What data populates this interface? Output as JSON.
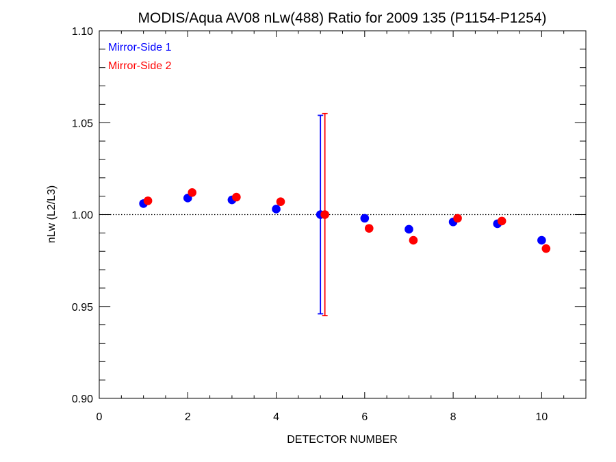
{
  "chart_data": {
    "type": "scatter",
    "title": "MODIS/Aqua AV08 nLw(488) Ratio for 2009 135 (P1154-P1254)",
    "xlabel": "DETECTOR NUMBER",
    "ylabel": "nLw (L2/L3)",
    "xlim": [
      0,
      11
    ],
    "ylim": [
      0.9,
      1.1
    ],
    "x_ticks": [
      0,
      2,
      4,
      6,
      8,
      10
    ],
    "x_tick_labels": [
      "0",
      "2",
      "4",
      "6",
      "8",
      "10"
    ],
    "y_ticks": [
      0.9,
      0.95,
      1.0,
      1.05,
      1.1
    ],
    "y_tick_labels": [
      "0.90",
      "0.95",
      "1.00",
      "1.05",
      "1.10"
    ],
    "reference_line": 1.0,
    "legend_position": "top-left",
    "series": [
      {
        "name": "Mirror-Side 1",
        "color": "#0000ff",
        "x": [
          1,
          2,
          3,
          4,
          5,
          6,
          7,
          8,
          9,
          10
        ],
        "y": [
          1.006,
          1.009,
          1.008,
          1.003,
          1.0,
          0.998,
          0.992,
          0.996,
          0.995,
          0.986
        ],
        "error_bar": {
          "x": 5,
          "low": 0.946,
          "high": 1.054
        }
      },
      {
        "name": "Mirror-Side 2",
        "color": "#ff0000",
        "x": [
          1.1,
          2.1,
          3.1,
          4.1,
          5.1,
          6.1,
          7.1,
          8.1,
          9.1,
          10.1
        ],
        "y": [
          1.0075,
          1.012,
          1.0095,
          1.007,
          1.0,
          0.9925,
          0.986,
          0.998,
          0.9965,
          0.9815
        ],
        "error_bar": {
          "x": 5.1,
          "low": 0.945,
          "high": 1.055
        }
      }
    ]
  }
}
